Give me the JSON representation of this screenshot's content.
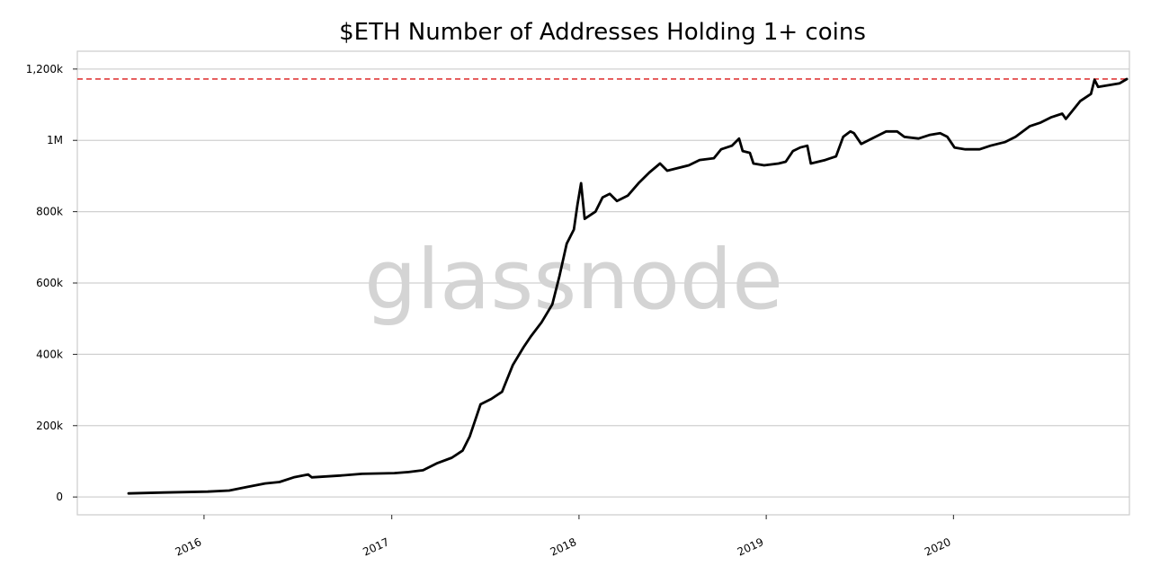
{
  "chart_data": {
    "type": "line",
    "title": "$ETH Number of Addresses Holding 1+ coins",
    "watermark": "glassnode",
    "xlabel": "",
    "ylabel": "",
    "x_range": [
      "2015-04-29",
      "2020-12-09"
    ],
    "ylim": [
      -50000,
      1250000
    ],
    "y_ticks": [
      {
        "value": 0,
        "label": "0"
      },
      {
        "value": 200000,
        "label": "200k"
      },
      {
        "value": 400000,
        "label": "400k"
      },
      {
        "value": 600000,
        "label": "600k"
      },
      {
        "value": 800000,
        "label": "800k"
      },
      {
        "value": 1000000,
        "label": "1M"
      },
      {
        "value": 1200000,
        "label": "1,200k"
      }
    ],
    "x_ticks": [
      {
        "value": "2016-01-01",
        "label": "2016"
      },
      {
        "value": "2017-01-01",
        "label": "2017"
      },
      {
        "value": "2018-01-01",
        "label": "2018"
      },
      {
        "value": "2019-01-01",
        "label": "2019"
      },
      {
        "value": "2020-01-01",
        "label": "2020"
      }
    ],
    "grid": true,
    "reference_line": {
      "value": 1172000,
      "style": "dashed",
      "color": "#e03a3a"
    },
    "line_color": "#000000",
    "series": [
      {
        "points": [
          [
            "2015-08-07",
            10000
          ],
          [
            "2015-10-15",
            12500
          ],
          [
            "2016-01-08",
            15000
          ],
          [
            "2016-02-19",
            18000
          ],
          [
            "2016-03-25",
            28000
          ],
          [
            "2016-04-29",
            38000
          ],
          [
            "2016-05-27",
            42000
          ],
          [
            "2016-06-24",
            55000
          ],
          [
            "2016-07-22",
            63000
          ],
          [
            "2016-07-29",
            55000
          ],
          [
            "2016-09-23",
            60000
          ],
          [
            "2016-11-04",
            65000
          ],
          [
            "2017-01-06",
            67000
          ],
          [
            "2017-02-03",
            70000
          ],
          [
            "2017-03-03",
            75000
          ],
          [
            "2017-03-17",
            85000
          ],
          [
            "2017-03-31",
            95000
          ],
          [
            "2017-04-28",
            110000
          ],
          [
            "2017-05-19",
            130000
          ],
          [
            "2017-06-02",
            170000
          ],
          [
            "2017-06-16",
            230000
          ],
          [
            "2017-06-23",
            260000
          ],
          [
            "2017-07-14",
            275000
          ],
          [
            "2017-08-04",
            295000
          ],
          [
            "2017-08-11",
            320000
          ],
          [
            "2017-08-25",
            370000
          ],
          [
            "2017-09-15",
            420000
          ],
          [
            "2017-09-29",
            450000
          ],
          [
            "2017-10-20",
            490000
          ],
          [
            "2017-11-10",
            540000
          ],
          [
            "2017-11-24",
            620000
          ],
          [
            "2017-12-08",
            710000
          ],
          [
            "2017-12-22",
            750000
          ],
          [
            "2017-12-29",
            820000
          ],
          [
            "2018-01-05",
            880000
          ],
          [
            "2018-01-12",
            780000
          ],
          [
            "2018-02-02",
            800000
          ],
          [
            "2018-02-16",
            840000
          ],
          [
            "2018-03-02",
            850000
          ],
          [
            "2018-03-16",
            830000
          ],
          [
            "2018-04-06",
            845000
          ],
          [
            "2018-04-27",
            880000
          ],
          [
            "2018-05-18",
            910000
          ],
          [
            "2018-06-08",
            935000
          ],
          [
            "2018-06-22",
            915000
          ],
          [
            "2018-07-06",
            920000
          ],
          [
            "2018-08-03",
            930000
          ],
          [
            "2018-08-24",
            945000
          ],
          [
            "2018-09-21",
            950000
          ],
          [
            "2018-10-05",
            975000
          ],
          [
            "2018-10-26",
            985000
          ],
          [
            "2018-11-09",
            1005000
          ],
          [
            "2018-11-16",
            970000
          ],
          [
            "2018-11-30",
            965000
          ],
          [
            "2018-12-07",
            935000
          ],
          [
            "2018-12-28",
            930000
          ],
          [
            "2019-01-25",
            935000
          ],
          [
            "2019-02-08",
            940000
          ],
          [
            "2019-02-22",
            970000
          ],
          [
            "2019-03-08",
            980000
          ],
          [
            "2019-03-22",
            985000
          ],
          [
            "2019-03-29",
            935000
          ],
          [
            "2019-04-26",
            945000
          ],
          [
            "2019-05-17",
            955000
          ],
          [
            "2019-05-31",
            1010000
          ],
          [
            "2019-06-14",
            1025000
          ],
          [
            "2019-06-21",
            1020000
          ],
          [
            "2019-07-05",
            990000
          ],
          [
            "2019-07-26",
            1005000
          ],
          [
            "2019-08-09",
            1015000
          ],
          [
            "2019-08-23",
            1025000
          ],
          [
            "2019-09-13",
            1025000
          ],
          [
            "2019-09-27",
            1010000
          ],
          [
            "2019-10-25",
            1005000
          ],
          [
            "2019-11-15",
            1015000
          ],
          [
            "2019-12-06",
            1020000
          ],
          [
            "2019-12-20",
            1010000
          ],
          [
            "2020-01-03",
            980000
          ],
          [
            "2020-01-24",
            975000
          ],
          [
            "2020-02-21",
            975000
          ],
          [
            "2020-03-13",
            985000
          ],
          [
            "2020-04-10",
            995000
          ],
          [
            "2020-05-01",
            1010000
          ],
          [
            "2020-05-29",
            1040000
          ],
          [
            "2020-06-19",
            1050000
          ],
          [
            "2020-07-10",
            1065000
          ],
          [
            "2020-07-31",
            1075000
          ],
          [
            "2020-08-07",
            1060000
          ],
          [
            "2020-08-21",
            1085000
          ],
          [
            "2020-09-04",
            1110000
          ],
          [
            "2020-09-25",
            1130000
          ],
          [
            "2020-10-02",
            1170000
          ],
          [
            "2020-10-09",
            1150000
          ],
          [
            "2020-10-30",
            1155000
          ],
          [
            "2020-11-20",
            1160000
          ],
          [
            "2020-12-04",
            1172000
          ]
        ]
      }
    ]
  }
}
